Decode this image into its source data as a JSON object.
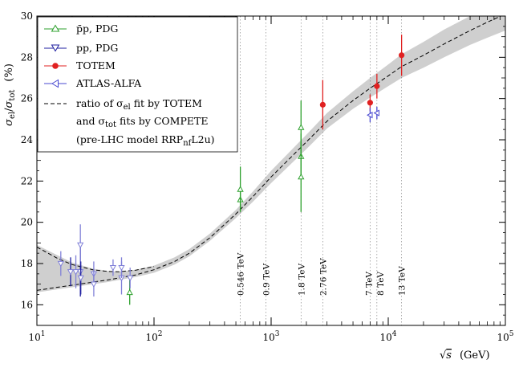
{
  "chart_data": {
    "type": "scatter",
    "xscale": "log",
    "xlim": [
      10,
      100000
    ],
    "ylim": [
      15,
      30
    ],
    "x_tick_labels": [
      {
        "value": 10,
        "base": "10",
        "exp": "1"
      },
      {
        "value": 100,
        "base": "10",
        "exp": "2"
      },
      {
        "value": 1000,
        "base": "10",
        "exp": "3"
      },
      {
        "value": 10000,
        "base": "10",
        "exp": "4"
      },
      {
        "value": 100000,
        "base": "10",
        "exp": "5"
      }
    ],
    "y_ticks": [
      16,
      18,
      20,
      22,
      24,
      26,
      28,
      30
    ],
    "xlabel": {
      "radical": "√",
      "var": "s",
      "unit": "(GeV)"
    },
    "ylabel": {
      "num": "σ",
      "num_sub": "el",
      "slash": "/",
      "den": "σ",
      "den_sub": "tot",
      "unit": "(%)"
    },
    "energy_annotations": [
      {
        "x": 546,
        "label": "0.546 TeV"
      },
      {
        "x": 900,
        "label": "0.9 TeV"
      },
      {
        "x": 1800,
        "label": "1.8 TeV"
      },
      {
        "x": 2760,
        "label": "2.76 TeV"
      },
      {
        "x": 7000,
        "label": "7 TeV"
      },
      {
        "x": 8000,
        "label": "8 TeV"
      },
      {
        "x": 13000,
        "label": "13 TeV"
      }
    ],
    "legend": [
      {
        "key": "ppbar",
        "text": "p̄p, PDG",
        "color": "#2ca02c",
        "marker": "triangle-up"
      },
      {
        "key": "pp",
        "text": "pp, PDG",
        "color": "#1f1fa0",
        "marker": "triangle-down"
      },
      {
        "key": "totem",
        "text": "TOTEM",
        "color": "#e02020",
        "marker": "circle"
      },
      {
        "key": "atlas",
        "text": "ATLAS-ALFA",
        "color": "#4a4ad0",
        "marker": "triangle-left"
      },
      {
        "key": "model_line1_a",
        "text": "ratio of σ"
      },
      {
        "key": "model_line1_sub",
        "text": "el"
      },
      {
        "key": "model_line1_b",
        "text": " fit by TOTEM"
      },
      {
        "key": "model_line2_a",
        "text": "and σ"
      },
      {
        "key": "model_line2_sub",
        "text": "tot"
      },
      {
        "key": "model_line2_b",
        "text": " fits by COMPETE"
      },
      {
        "key": "model_line3_a",
        "text": "(pre-LHC model RRP"
      },
      {
        "key": "model_line3_sub",
        "text": "nf"
      },
      {
        "key": "model_line3_b",
        "text": "L2u)"
      }
    ],
    "colors": {
      "ppbar": "#2ca02c",
      "pp": "#1f1fa0",
      "pp_light": "#8080d8",
      "totem": "#e02020",
      "atlas": "#4a4ad0",
      "band": "#cfcfcf"
    },
    "series": [
      {
        "name": "ppbar_pdg",
        "points": [
          {
            "x": 62,
            "y": 16.6,
            "err": 0.6
          },
          {
            "x": 546,
            "y": 21.1,
            "err": 0.5
          },
          {
            "x": 546,
            "y": 21.6,
            "err": 1.1
          },
          {
            "x": 1800,
            "y": 24.6,
            "err": 1.3
          },
          {
            "x": 1800,
            "y": 23.2,
            "err": 1.1
          },
          {
            "x": 1800,
            "y": 22.2,
            "err": 1.7
          }
        ]
      },
      {
        "name": "pp_pdg",
        "points": [
          {
            "x": 16,
            "y": 18.0,
            "err": 0.6
          },
          {
            "x": 19.4,
            "y": 17.6,
            "err": 0.7
          },
          {
            "x": 21.5,
            "y": 17.6,
            "err": 0.8
          },
          {
            "x": 23.5,
            "y": 17.6,
            "err": 1.2
          },
          {
            "x": 23.5,
            "y": 18.9,
            "err": 1.0
          },
          {
            "x": 23.7,
            "y": 17.3,
            "err": 0.8
          },
          {
            "x": 30.6,
            "y": 17.5,
            "err": 0.6
          },
          {
            "x": 30.6,
            "y": 17.0,
            "err": 0.6
          },
          {
            "x": 44.7,
            "y": 17.8,
            "err": 0.4
          },
          {
            "x": 52.8,
            "y": 17.3,
            "err": 0.8
          },
          {
            "x": 52.8,
            "y": 17.8,
            "err": 0.5
          },
          {
            "x": 62.5,
            "y": 17.3,
            "err": 0.5
          }
        ]
      },
      {
        "name": "totem",
        "points": [
          {
            "x": 2760,
            "y": 25.7,
            "err": 1.2
          },
          {
            "x": 7000,
            "y": 25.8,
            "err": 0.4
          },
          {
            "x": 8000,
            "y": 26.6,
            "err": 0.6
          },
          {
            "x": 13000,
            "y": 28.1,
            "err": 1.0
          }
        ]
      },
      {
        "name": "atlas_alfa",
        "points": [
          {
            "x": 7000,
            "y": 25.2,
            "err": 0.35
          },
          {
            "x": 8000,
            "y": 25.3,
            "err": 0.3
          }
        ]
      }
    ],
    "model": {
      "x": [
        10,
        15,
        20,
        30,
        40,
        50,
        70,
        100,
        150,
        200,
        300,
        500,
        700,
        1000,
        2000,
        3000,
        5000,
        7000,
        10000,
        13000,
        20000,
        30000,
        50000,
        70000,
        100000
      ],
      "y": [
        16.7,
        16.85,
        16.95,
        17.1,
        17.2,
        17.3,
        17.45,
        17.7,
        18.1,
        18.5,
        19.25,
        20.4,
        21.25,
        22.2,
        23.9,
        24.9,
        25.9,
        26.5,
        27.1,
        27.55,
        28.1,
        28.65,
        29.3,
        29.7,
        30.1
      ],
      "band_lo": [
        16.6,
        16.75,
        16.85,
        17.0,
        17.1,
        17.2,
        17.35,
        17.55,
        17.95,
        18.35,
        19.1,
        20.2,
        21.0,
        21.9,
        23.55,
        24.55,
        25.5,
        26.05,
        26.6,
        27.0,
        27.5,
        28.0,
        28.6,
        28.95,
        29.3
      ],
      "band_hi": [
        18.9,
        18.4,
        18.05,
        17.75,
        17.65,
        17.6,
        17.7,
        17.9,
        18.3,
        18.7,
        19.45,
        20.6,
        21.5,
        22.5,
        24.25,
        25.3,
        26.35,
        27.0,
        27.65,
        28.15,
        28.75,
        29.35,
        30.0,
        30.5,
        30.9
      ],
      "upper_branch_x": [
        10,
        15,
        20,
        30,
        40,
        50,
        70,
        100
      ],
      "upper_branch_y": [
        18.8,
        18.25,
        17.95,
        17.7,
        17.62,
        17.6,
        17.68,
        17.85
      ]
    }
  }
}
